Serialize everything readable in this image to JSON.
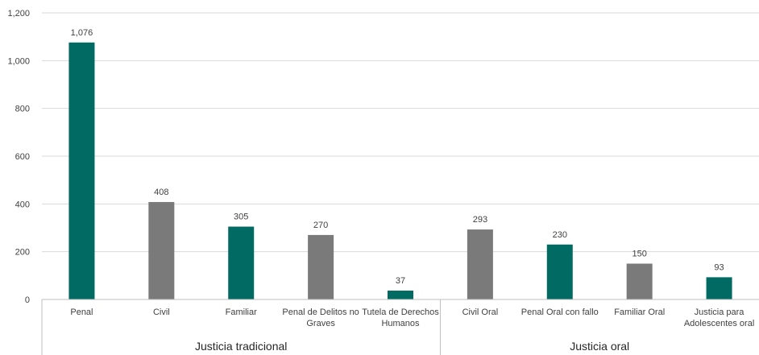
{
  "chart_data": {
    "type": "bar",
    "title": "",
    "xlabel": "",
    "ylabel": "",
    "ylim": [
      0,
      1200
    ],
    "yticks": [
      0,
      200,
      400,
      600,
      800,
      1000,
      1200
    ],
    "ytick_labels": [
      "0",
      "200",
      "400",
      "600",
      "800",
      "1,000",
      "1,200"
    ],
    "grid": "horizontal",
    "legend": "none",
    "categories": [
      [
        "Penal"
      ],
      [
        "Civil"
      ],
      [
        "Familiar"
      ],
      [
        "Penal de Delitos no",
        "Graves"
      ],
      [
        "Tutela de Derechos",
        "Humanos"
      ],
      [
        "Civil Oral"
      ],
      [
        "Penal Oral con fallo"
      ],
      [
        "Familiar Oral"
      ],
      [
        "Justicia para",
        "Adolescentes oral"
      ]
    ],
    "values": [
      1076,
      408,
      305,
      270,
      37,
      293,
      230,
      150,
      93
    ],
    "value_labels": [
      "1,076",
      "408",
      "305",
      "270",
      "37",
      "293",
      "230",
      "150",
      "93"
    ],
    "bar_colors": [
      "#006a63",
      "#7a7a7a",
      "#006a63",
      "#7a7a7a",
      "#006a63",
      "#7a7a7a",
      "#006a63",
      "#7a7a7a",
      "#006a63"
    ],
    "groups": [
      {
        "label": "Justicia tradicional",
        "start": 0,
        "end": 4
      },
      {
        "label": "Justicia oral",
        "start": 5,
        "end": 8
      }
    ]
  }
}
